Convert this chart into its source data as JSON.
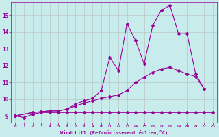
{
  "background_color": "#c8ecec",
  "line_color": "#990099",
  "grid_color": "#b0b0b0",
  "xlabel": "Windchill (Refroidissement éolien,°C)",
  "tick_color": "#990099",
  "xlim": [
    -0.5,
    23.5
  ],
  "ylim": [
    8.6,
    15.8
  ],
  "xticks": [
    0,
    1,
    2,
    3,
    4,
    5,
    6,
    7,
    8,
    9,
    10,
    11,
    12,
    13,
    14,
    15,
    16,
    17,
    18,
    19,
    20,
    21,
    22,
    23
  ],
  "yticks": [
    9,
    10,
    11,
    12,
    13,
    14,
    15
  ],
  "line1_x": [
    0,
    1,
    2,
    3,
    4,
    5,
    6,
    7,
    8,
    9,
    10,
    11,
    12,
    13,
    14,
    15,
    16,
    17,
    18,
    19,
    20,
    21,
    22,
    23
  ],
  "line1_y": [
    9.0,
    8.9,
    9.1,
    9.2,
    9.2,
    9.2,
    9.2,
    9.2,
    9.2,
    9.2,
    9.2,
    9.2,
    9.2,
    9.2,
    9.2,
    9.2,
    9.2,
    9.2,
    9.2,
    9.2,
    9.2,
    9.2,
    9.2,
    9.2
  ],
  "line2_x": [
    0,
    2,
    3,
    4,
    5,
    6,
    7,
    8,
    9,
    10,
    11,
    12,
    13,
    14,
    15,
    16,
    17,
    18,
    19,
    20,
    21,
    22
  ],
  "line2_y": [
    9.0,
    9.2,
    9.25,
    9.3,
    9.3,
    9.4,
    9.6,
    9.75,
    9.9,
    10.05,
    10.15,
    10.25,
    10.5,
    11.0,
    11.3,
    11.6,
    11.8,
    11.9,
    11.7,
    11.5,
    11.35,
    10.6
  ],
  "line3_x": [
    0,
    2,
    3,
    4,
    5,
    6,
    7,
    8,
    9,
    10,
    11,
    12,
    13,
    14,
    15,
    16,
    17,
    18,
    19,
    20,
    21,
    22
  ],
  "line3_y": [
    9.0,
    9.2,
    9.25,
    9.3,
    9.3,
    9.4,
    9.7,
    9.9,
    10.05,
    10.5,
    12.5,
    11.7,
    14.5,
    13.5,
    12.1,
    14.4,
    15.3,
    15.6,
    13.9,
    13.9,
    11.5,
    10.6
  ],
  "marker": "D",
  "markersize": 2,
  "linewidth": 0.8
}
